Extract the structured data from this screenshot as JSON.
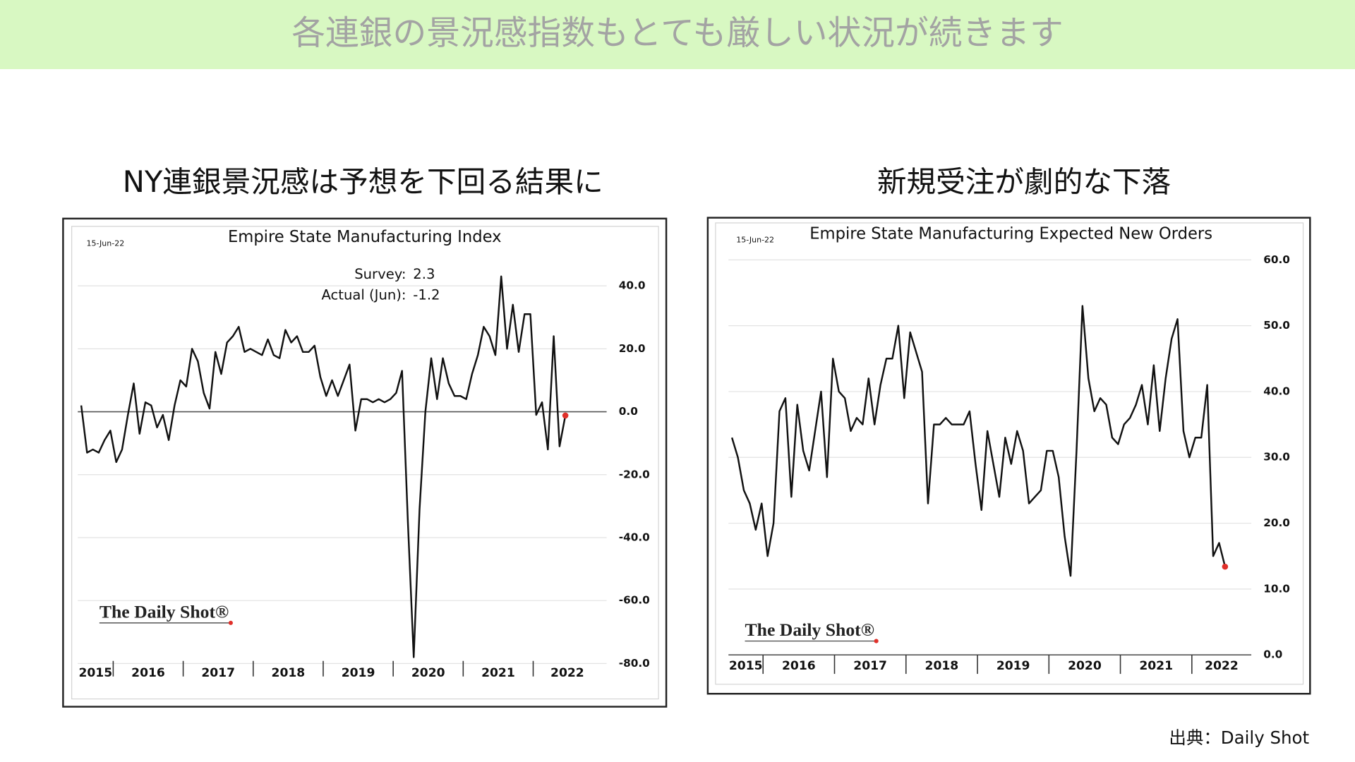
{
  "header": {
    "title": "各連銀の景況感指数もとても厳しい状況が続きます"
  },
  "chart_data": [
    {
      "type": "line",
      "heading": "NY連銀景況感は予想を下回る結果に",
      "title": "Empire State Manufacturing Index",
      "date": "15-Jun-22",
      "annotations": [
        {
          "label": "Survey:",
          "value": 2.3
        },
        {
          "label": "Actual (Jun):",
          "value": -1.2
        }
      ],
      "watermark": "The Daily Shot®",
      "x_labels": [
        "2015",
        "2016",
        "2017",
        "2018",
        "2019",
        "2020",
        "2021",
        "2022"
      ],
      "values": [
        2,
        -13,
        -12,
        -13,
        -9,
        -6,
        -16,
        -12,
        -1,
        9,
        -7,
        3,
        2,
        -5,
        -1,
        -9,
        2,
        10,
        8,
        20,
        16,
        6,
        1,
        19,
        12,
        22,
        24,
        27,
        19,
        20,
        19,
        18,
        23,
        18,
        17,
        26,
        22,
        24,
        19,
        19,
        21,
        11,
        5,
        10,
        5,
        10,
        15,
        -6,
        4,
        4,
        3,
        4,
        3,
        4,
        6,
        13,
        -35,
        -78,
        -31,
        0,
        17,
        4,
        17,
        9,
        5,
        5,
        4,
        12,
        18,
        27,
        24,
        18,
        43,
        20,
        34,
        19,
        31,
        31,
        -1,
        3,
        -12,
        24,
        -11,
        -1.2
      ],
      "color": "#111111",
      "last_point_color": "#e0302a",
      "ylim": [
        -80,
        60
      ],
      "yticks": [
        {
          "value": 40,
          "label": "40.0"
        },
        {
          "value": 20,
          "label": "20.0"
        },
        {
          "value": 0,
          "label": "0.0"
        },
        {
          "value": -20,
          "label": "-20.0"
        },
        {
          "value": -40,
          "label": "-40.0"
        },
        {
          "value": -60,
          "label": "-60.0"
        },
        {
          "value": -80,
          "label": "-80.0"
        }
      ],
      "grid": true
    },
    {
      "type": "line",
      "heading": "新規受注が劇的な下落",
      "title": "Empire State Manufacturing Expected New Orders",
      "date": "15-Jun-22",
      "watermark": "The Daily Shot®",
      "x_labels": [
        "2015",
        "2016",
        "2017",
        "2018",
        "2019",
        "2020",
        "2021",
        "2022"
      ],
      "values": [
        33,
        30,
        25,
        23,
        19,
        23,
        15,
        20,
        37,
        39,
        24,
        38,
        31,
        28,
        34,
        40,
        27,
        45,
        40,
        39,
        34,
        36,
        35,
        42,
        35,
        41,
        45,
        45,
        50,
        39,
        49,
        46,
        43,
        23,
        35,
        35,
        36,
        35,
        35,
        35,
        37,
        29,
        22,
        34,
        29,
        24,
        33,
        29,
        34,
        31,
        23,
        24,
        25,
        31,
        31,
        27,
        18,
        12,
        31,
        53,
        42,
        37,
        39,
        38,
        33,
        32,
        35,
        36,
        38,
        41,
        35,
        44,
        34,
        42,
        48,
        51,
        34,
        30,
        33,
        33,
        41,
        15,
        17,
        13.4
      ],
      "color": "#111111",
      "last_point_color": "#e0302a",
      "ylim": [
        0,
        65
      ],
      "yticks": [
        {
          "value": 60,
          "label": "60.0"
        },
        {
          "value": 50,
          "label": "50.0"
        },
        {
          "value": 40,
          "label": "40.0"
        },
        {
          "value": 30,
          "label": "30.0"
        },
        {
          "value": 20,
          "label": "20.0"
        },
        {
          "value": 10,
          "label": "10.0"
        },
        {
          "value": 0,
          "label": "0.0"
        }
      ],
      "grid": true
    }
  ],
  "source": "出典：Daily Shot"
}
